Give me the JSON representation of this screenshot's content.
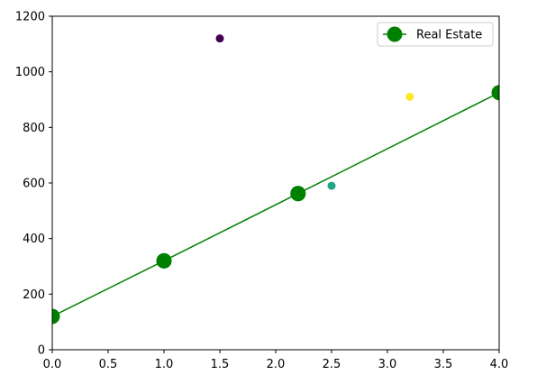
{
  "chart_data": {
    "type": "line",
    "title": "",
    "xlabel": "",
    "ylabel": "",
    "xlim": [
      0,
      4
    ],
    "ylim": [
      0,
      1200
    ],
    "x_ticks": [
      0.0,
      0.5,
      1.0,
      1.5,
      2.0,
      2.5,
      3.0,
      3.5,
      4.0
    ],
    "x_tick_labels": [
      "0.0",
      "0.5",
      "1.0",
      "1.5",
      "2.0",
      "2.5",
      "3.0",
      "3.5",
      "4.0"
    ],
    "y_ticks": [
      0,
      200,
      400,
      600,
      800,
      1000,
      1200
    ],
    "y_tick_labels": [
      "0",
      "200",
      "400",
      "600",
      "800",
      "1000",
      "1200"
    ],
    "grid": false,
    "legend": {
      "placement": "top-right"
    },
    "series": [
      {
        "name": "Real Estate",
        "kind": "line-with-markers",
        "color": "#008000",
        "x": [
          0.0,
          1.0,
          2.2,
          1.0,
          2.2,
          4.0
        ],
        "y": [
          120,
          320,
          562,
          320,
          562,
          925
        ]
      }
    ],
    "scatter_points": [
      {
        "x": 1.5,
        "y": 1120,
        "color": "#440154"
      },
      {
        "x": 2.5,
        "y": 590,
        "color": "#21a585"
      },
      {
        "x": 3.2,
        "y": 910,
        "color": "#fde725"
      }
    ]
  }
}
